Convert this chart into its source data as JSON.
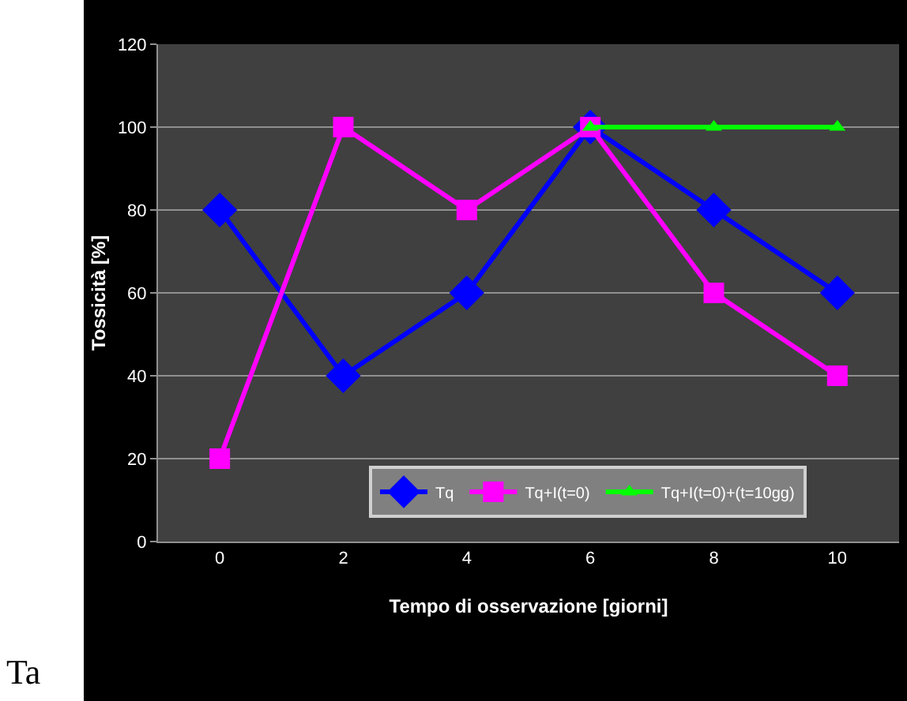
{
  "chart_data": {
    "type": "line",
    "xlabel": "Tempo di osservazione [giorni]",
    "ylabel": "Tossicità [%]",
    "categories": [
      "0",
      "2",
      "4",
      "6",
      "8",
      "10"
    ],
    "series": [
      {
        "name": "Tq",
        "color": "#0000ff",
        "marker": "diamond",
        "values": [
          80,
          40,
          60,
          100,
          80,
          60
        ]
      },
      {
        "name": "Tq+I(t=0)",
        "color": "#ff00ff",
        "marker": "square",
        "values": [
          20,
          100,
          80,
          100,
          60,
          40
        ]
      },
      {
        "name": "Tq+I(t=0)+(t=10gg)",
        "color": "#00ff00",
        "marker": "triangle",
        "values": [
          null,
          null,
          null,
          100,
          100,
          100
        ]
      }
    ],
    "ylim": [
      0,
      120
    ],
    "yticks": [
      0,
      20,
      40,
      60,
      80,
      100,
      120
    ],
    "grid": "y",
    "legend": "bottom",
    "line_style": "solid",
    "annotations": [
      "Ta"
    ]
  }
}
